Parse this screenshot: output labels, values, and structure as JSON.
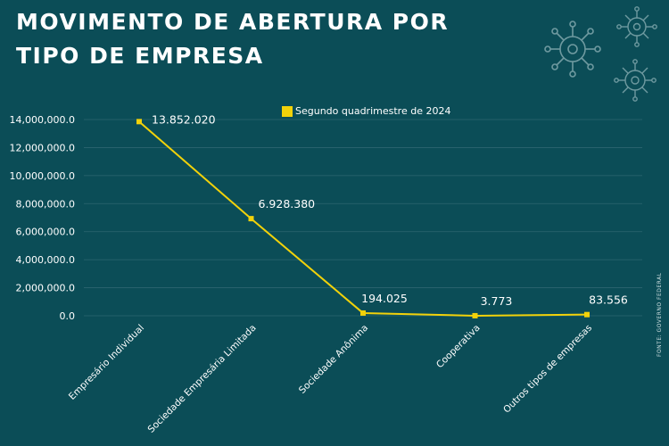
{
  "title_line1": "MOVIMENTO DE ABERTURA POR",
  "title_line2": "TIPO DE EMPRESA",
  "source": "FONTE: GOVERNO FEDERAL",
  "colors": {
    "background": "#0b4d57",
    "series": "#f2d20a",
    "grid": "#2c6670",
    "decoration": "#6f9aa0"
  },
  "icons": [
    "gear-network-icon",
    "gear-network-icon",
    "gear-network-icon"
  ],
  "chart_data": {
    "type": "line",
    "categories": [
      "Empresário Individual",
      "Sociedade Empresária Limitada",
      "Sociedade Anônima",
      "Cooperativa",
      "Outros tipos de empresas"
    ],
    "series": [
      {
        "name": "Segundo quadrimestre de 2024",
        "values": [
          13852020,
          6928380,
          194025,
          3773,
          83556
        ],
        "labels": [
          "13.852.020",
          "6.928.380",
          "194.025",
          "3.773",
          "83.556"
        ]
      }
    ],
    "yticks": [
      0,
      2000000,
      4000000,
      6000000,
      8000000,
      10000000,
      12000000,
      14000000
    ],
    "ytick_labels": [
      "0.0",
      "2,000,000.0",
      "4,000,000.0",
      "6,000,000.0",
      "8,000,000.0",
      "10,000,000.0",
      "12,000,000.0",
      "14,000,000.0"
    ],
    "ylim": [
      0,
      14000000
    ],
    "grid": true,
    "legend": "top-center"
  }
}
